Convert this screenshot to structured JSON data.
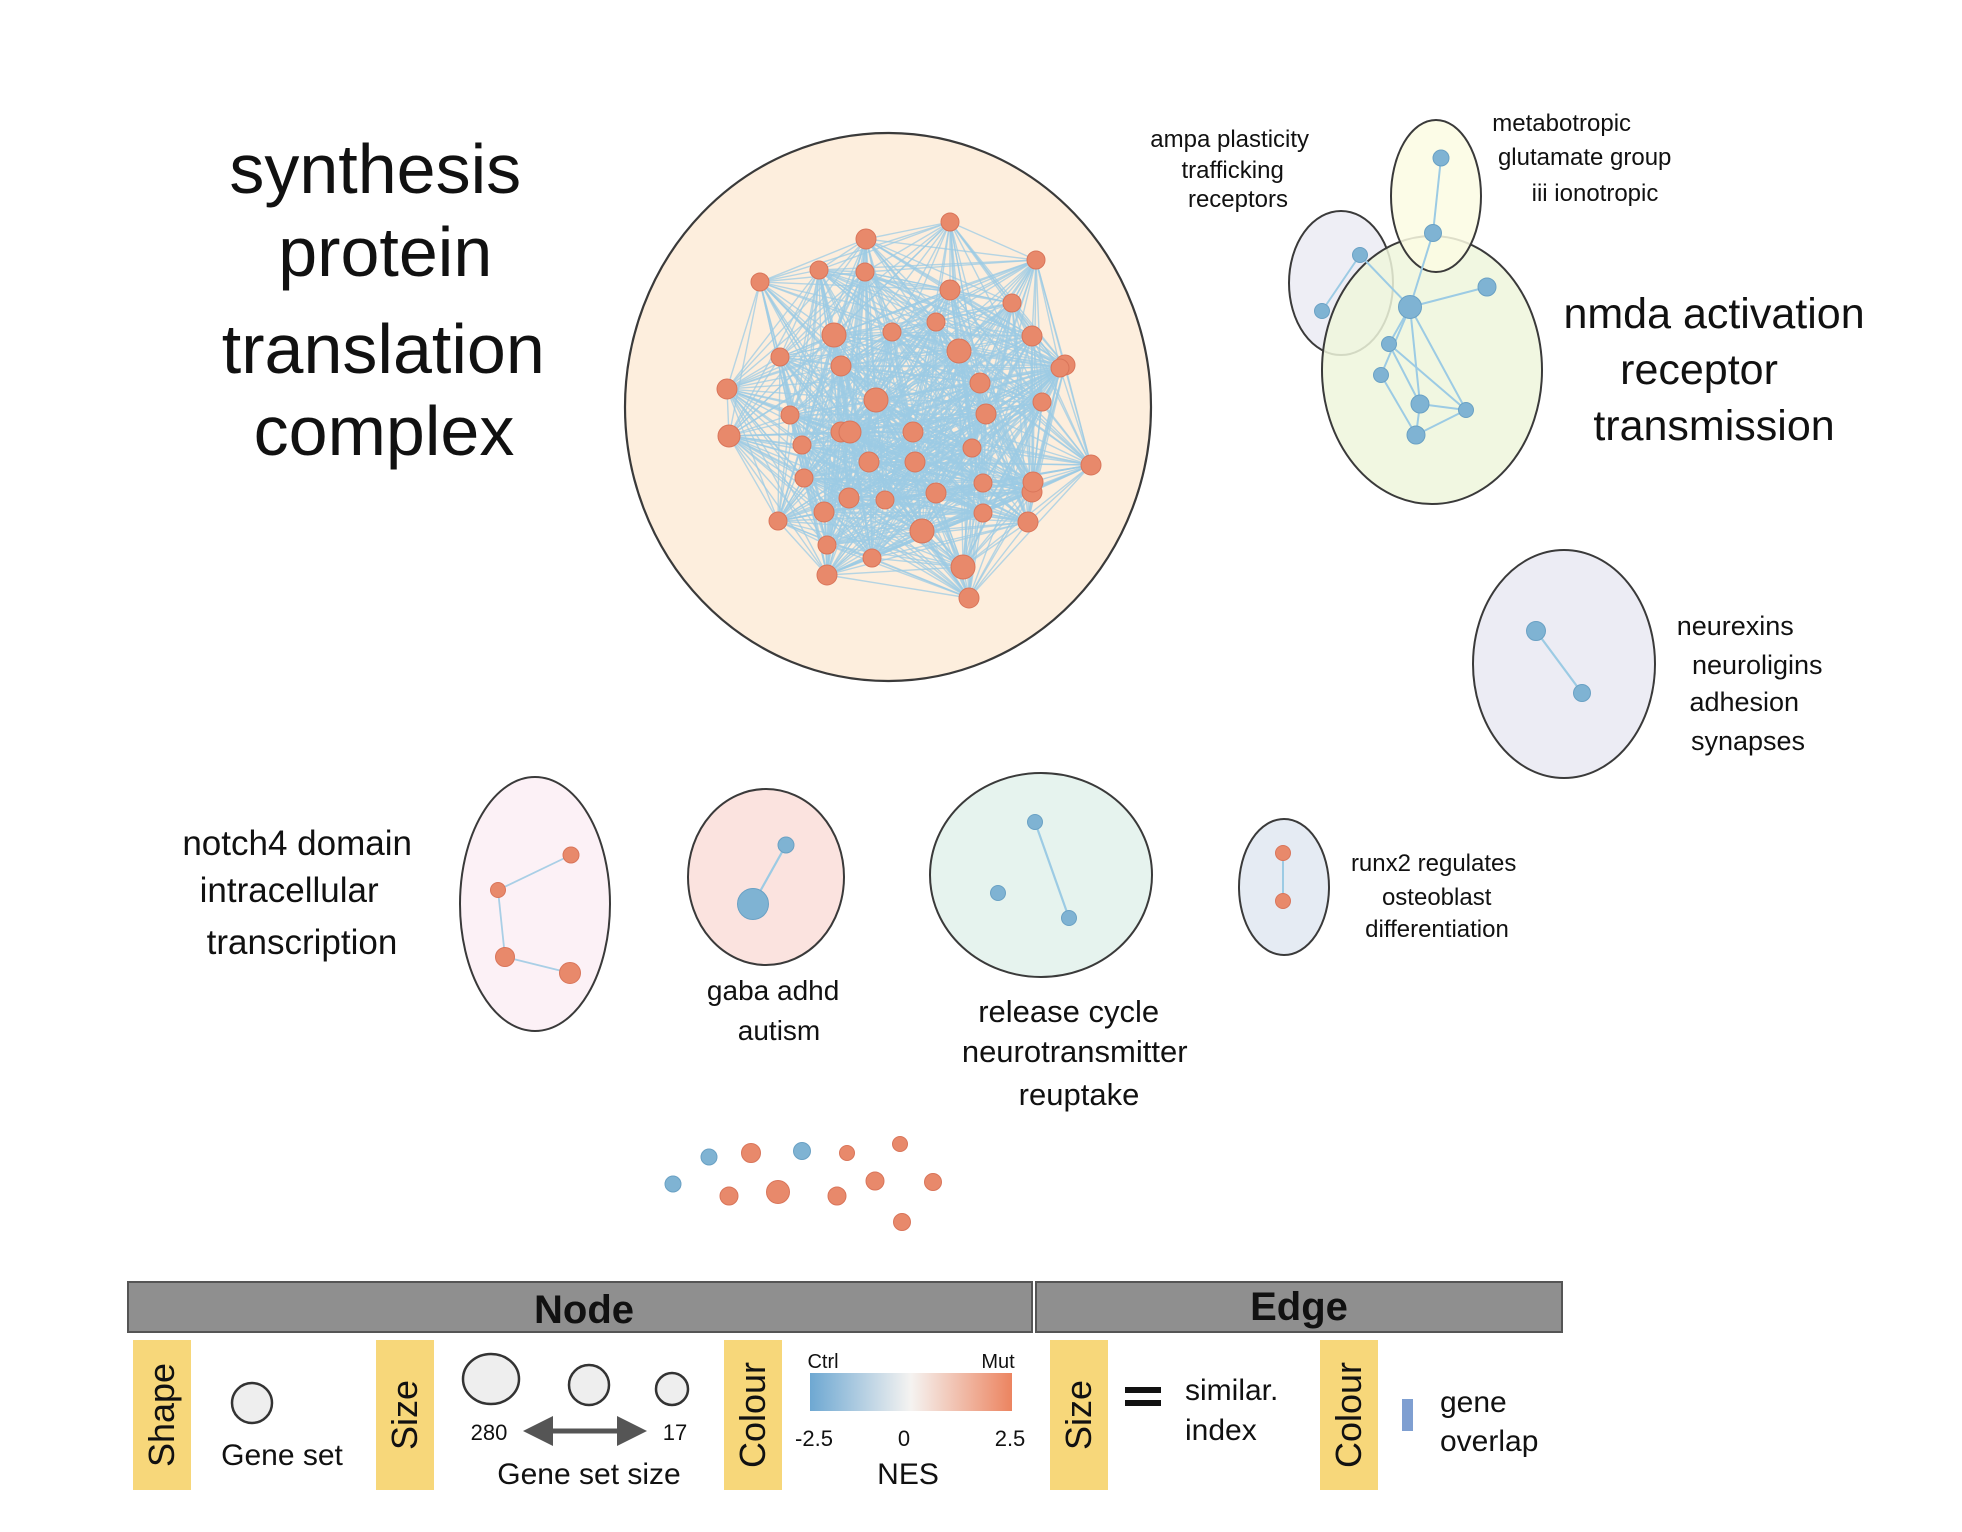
{
  "colors": {
    "up": "#e8896b",
    "up_stroke": "#d9755a",
    "down": "#7fb3d3",
    "down_stroke": "#6aa1c4",
    "edge": "#9ccbe4",
    "legend_bar": "#8f8f8f",
    "legend_tag": "#f7d77a",
    "gene_overlap": "#7f9fd1"
  },
  "clusters": [
    {
      "id": "translation",
      "label": [
        "synthesis",
        "protein",
        "translation",
        "complex"
      ],
      "fill": "#fdeedd",
      "nes_sign": "positive"
    },
    {
      "id": "nmda",
      "label": [
        "nmda activation",
        "receptor",
        "transmission"
      ],
      "fill": "#eef6dc",
      "nes_sign": "negative"
    },
    {
      "id": "ampa",
      "label": [
        "ampa plasticity",
        "trafficking",
        "receptors"
      ],
      "fill": "#ececf4",
      "nes_sign": "negative"
    },
    {
      "id": "metabotropic",
      "label": [
        "metabotropic",
        "glutamate group",
        "iii ionotropic"
      ],
      "fill": "#fbfbe3",
      "nes_sign": "negative"
    },
    {
      "id": "neurexins",
      "label": [
        "neurexins",
        "neuroligins",
        "adhesion",
        "synapses"
      ],
      "fill": "#ececf4",
      "nes_sign": "negative"
    },
    {
      "id": "notch4",
      "label": [
        "notch4 domain",
        "intracellular",
        "transcription"
      ],
      "fill": "#fcf1f6",
      "nes_sign": "positive"
    },
    {
      "id": "gaba",
      "label": [
        "gaba adhd",
        "autism"
      ],
      "fill": "#fbe3df",
      "nes_sign": "negative"
    },
    {
      "id": "release",
      "label": [
        "release cycle",
        "neurotransmitter",
        "reuptake"
      ],
      "fill": "#e6f3ee",
      "nes_sign": "negative"
    },
    {
      "id": "runx2",
      "label": [
        "runx2 regulates",
        "osteoblast",
        "differentiation"
      ],
      "fill": "#e5ebf3",
      "nes_sign": "positive"
    }
  ],
  "legend": {
    "node_header": "Node",
    "edge_header": "Edge",
    "shape_tag": "Shape",
    "shape_item": "Gene set",
    "size_tag": "Size",
    "size_max": "280",
    "size_min": "17",
    "size_caption": "Gene set size",
    "colour_tag": "Colour",
    "nes_left_label": "Ctrl",
    "nes_right_label": "Mut",
    "nes_ticks": [
      "-2.5",
      "0",
      "2.5"
    ],
    "nes_caption": "NES",
    "edge_size_tag": "Size",
    "edge_size_text": [
      "similar.",
      "index"
    ],
    "edge_colour_tag": "Colour",
    "edge_colour_text": [
      "gene",
      "overlap"
    ]
  }
}
